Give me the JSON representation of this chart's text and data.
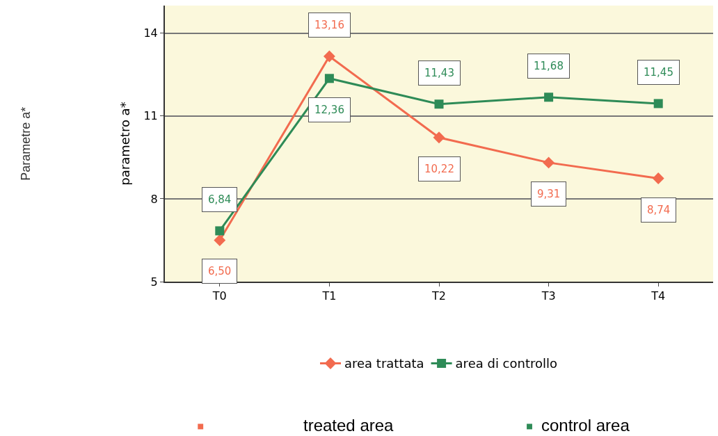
{
  "chart_data": {
    "type": "line",
    "ylabel": "parametro a*",
    "categories": [
      "T0",
      "T1",
      "T2",
      "T3",
      "T4"
    ],
    "series": [
      {
        "name": "area trattata",
        "color": "#f26b4f",
        "marker": "diamond",
        "values": [
          6.5,
          13.16,
          10.22,
          9.31,
          8.74
        ],
        "value_labels": [
          "6,50",
          "13,16",
          "10,22",
          "9,31",
          "8,74"
        ]
      },
      {
        "name": "area di controllo",
        "color": "#2e8b57",
        "marker": "square",
        "values": [
          6.84,
          12.36,
          11.43,
          11.68,
          11.45
        ],
        "value_labels": [
          "6,84",
          "12,36",
          "11,43",
          "11,68",
          "11,45"
        ]
      }
    ],
    "ylim": [
      5,
      15
    ],
    "yticks": [
      5,
      8,
      11,
      14
    ],
    "grid": "y",
    "legend": "bottom",
    "annotations": [
      "Parametre a*",
      "treated area",
      "control area"
    ]
  }
}
